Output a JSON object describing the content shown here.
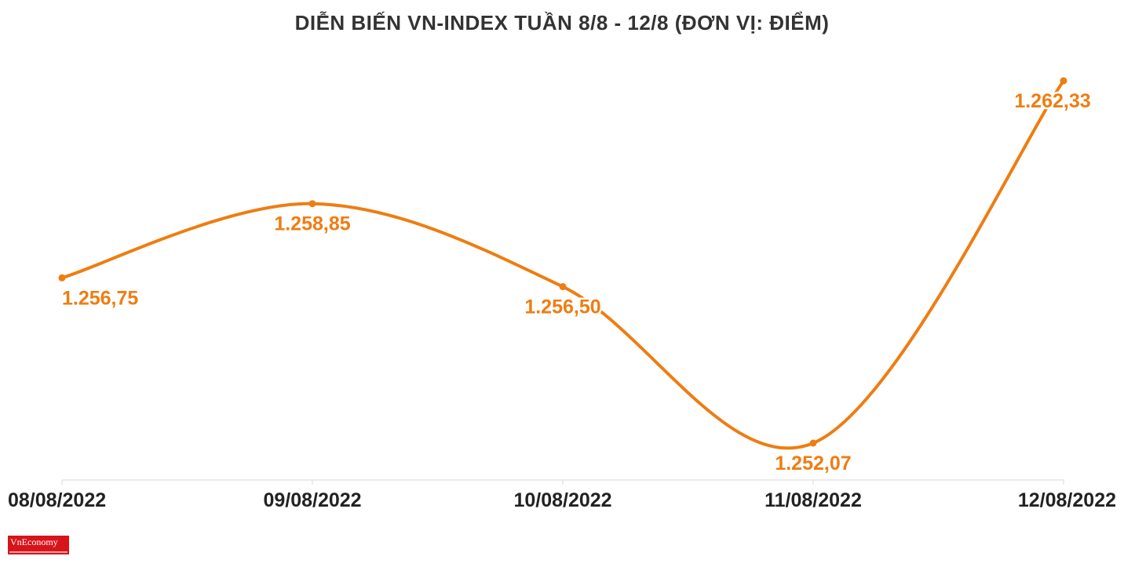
{
  "chart_data": {
    "type": "line",
    "title": "DIỄN BIẾN VN-INDEX TUẦN 8/8 - 12/8 (ĐƠN VỊ: ĐIỂM)",
    "categories": [
      "08/08/2022",
      "09/08/2022",
      "10/08/2022",
      "11/08/2022",
      "12/08/2022"
    ],
    "values": [
      1256.75,
      1258.85,
      1256.5,
      1252.07,
      1262.33
    ],
    "data_labels": [
      "1.256,75",
      "1.258,85",
      "1.256,50",
      "1.252,07",
      "1.262,33"
    ],
    "xlabel": "",
    "ylabel": "",
    "ylim": [
      1252.07,
      1262.33
    ],
    "grid": false,
    "smooth": true
  },
  "colors": {
    "line": "#ee7d12",
    "label": "#ee7d12",
    "title": "#333333",
    "axis_text": "#222222",
    "axis_line": "#d9d9d9",
    "logo_bg": "#d7141a"
  },
  "logo": {
    "text": "VnEconomy"
  }
}
